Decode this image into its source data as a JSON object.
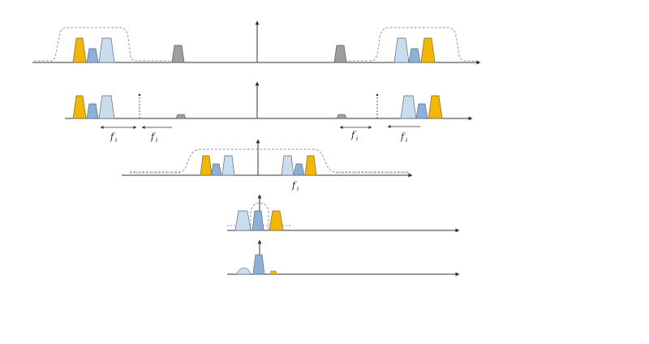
{
  "diagram": {
    "freq_label": "f",
    "freq_subscript": "i",
    "colors": {
      "orange": "#F2B705",
      "light_blue": "#C9DDEF",
      "mid_blue": "#8EB0D6",
      "gray": "#9E9E9E",
      "axis": "#333333",
      "envelope": "#9A9A9A",
      "envelope_blue": "#8E8EE0"
    }
  }
}
